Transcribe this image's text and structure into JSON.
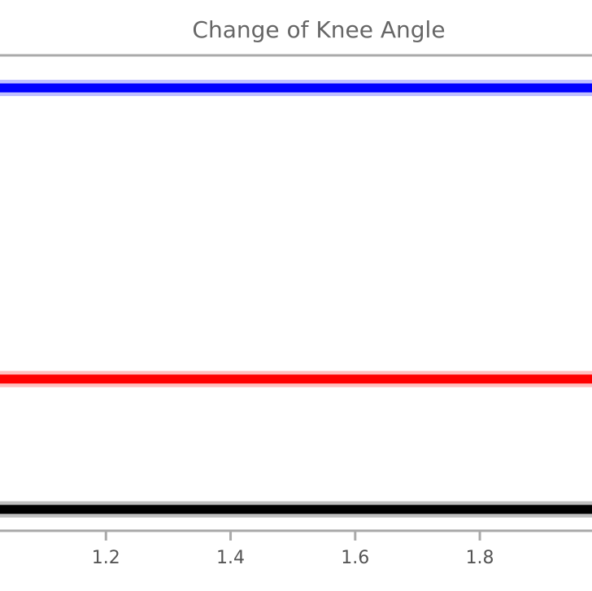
{
  "chart_data": {
    "type": "line",
    "title": "Change of Knee Angle",
    "xlabel": "",
    "ylabel": "",
    "x_ticks": [
      "1.2",
      "1.4",
      "1.6",
      "1.8"
    ],
    "xlim": [
      1.03,
      1.98
    ],
    "ylim": [
      0.0,
      1.0
    ],
    "grid": false,
    "legend": "none",
    "series": [
      {
        "color": "#0000ff",
        "x": [
          1.03,
          1.98
        ],
        "y": [
          0.953,
          0.953
        ]
      },
      {
        "color": "#ff0000",
        "x": [
          1.03,
          1.98
        ],
        "y": [
          0.305,
          0.305
        ]
      },
      {
        "color": "#000000",
        "x": [
          1.03,
          1.98
        ],
        "y": [
          0.015,
          0.015
        ]
      }
    ]
  }
}
